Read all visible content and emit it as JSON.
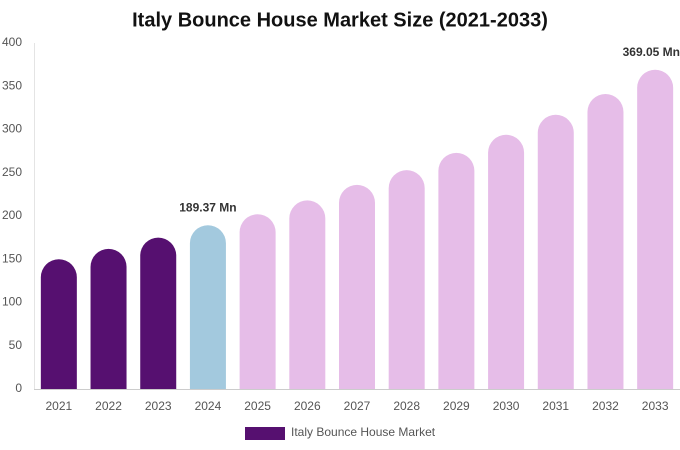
{
  "chart_data": {
    "type": "bar",
    "title": "Italy Bounce House Market Size (2021-2033)",
    "categories": [
      "2021",
      "2022",
      "2023",
      "2024",
      "2025",
      "2026",
      "2027",
      "2028",
      "2029",
      "2030",
      "2031",
      "2032",
      "2033"
    ],
    "series": [
      {
        "name": "Italy Bounce House Market",
        "color": "#561070",
        "values": [
          150,
          162,
          175,
          189.37,
          202,
          218,
          236,
          253,
          273,
          294,
          317,
          341,
          369.05
        ],
        "value_labels": [
          null,
          null,
          null,
          "189.37 Mn",
          null,
          null,
          null,
          null,
          null,
          null,
          null,
          null,
          "369.05 Mn"
        ],
        "colors": [
          "#561070",
          "#561070",
          "#561070",
          "#a3c9de",
          "#e6bde8",
          "#e6bde8",
          "#e6bde8",
          "#e6bde8",
          "#e6bde8",
          "#e6bde8",
          "#e6bde8",
          "#e6bde8",
          "#e6bde8"
        ]
      }
    ],
    "ylim": [
      0,
      400
    ],
    "yticks": [
      0,
      50,
      100,
      150,
      200,
      250,
      300,
      350,
      400
    ],
    "grid": false,
    "legend": "bottom"
  }
}
